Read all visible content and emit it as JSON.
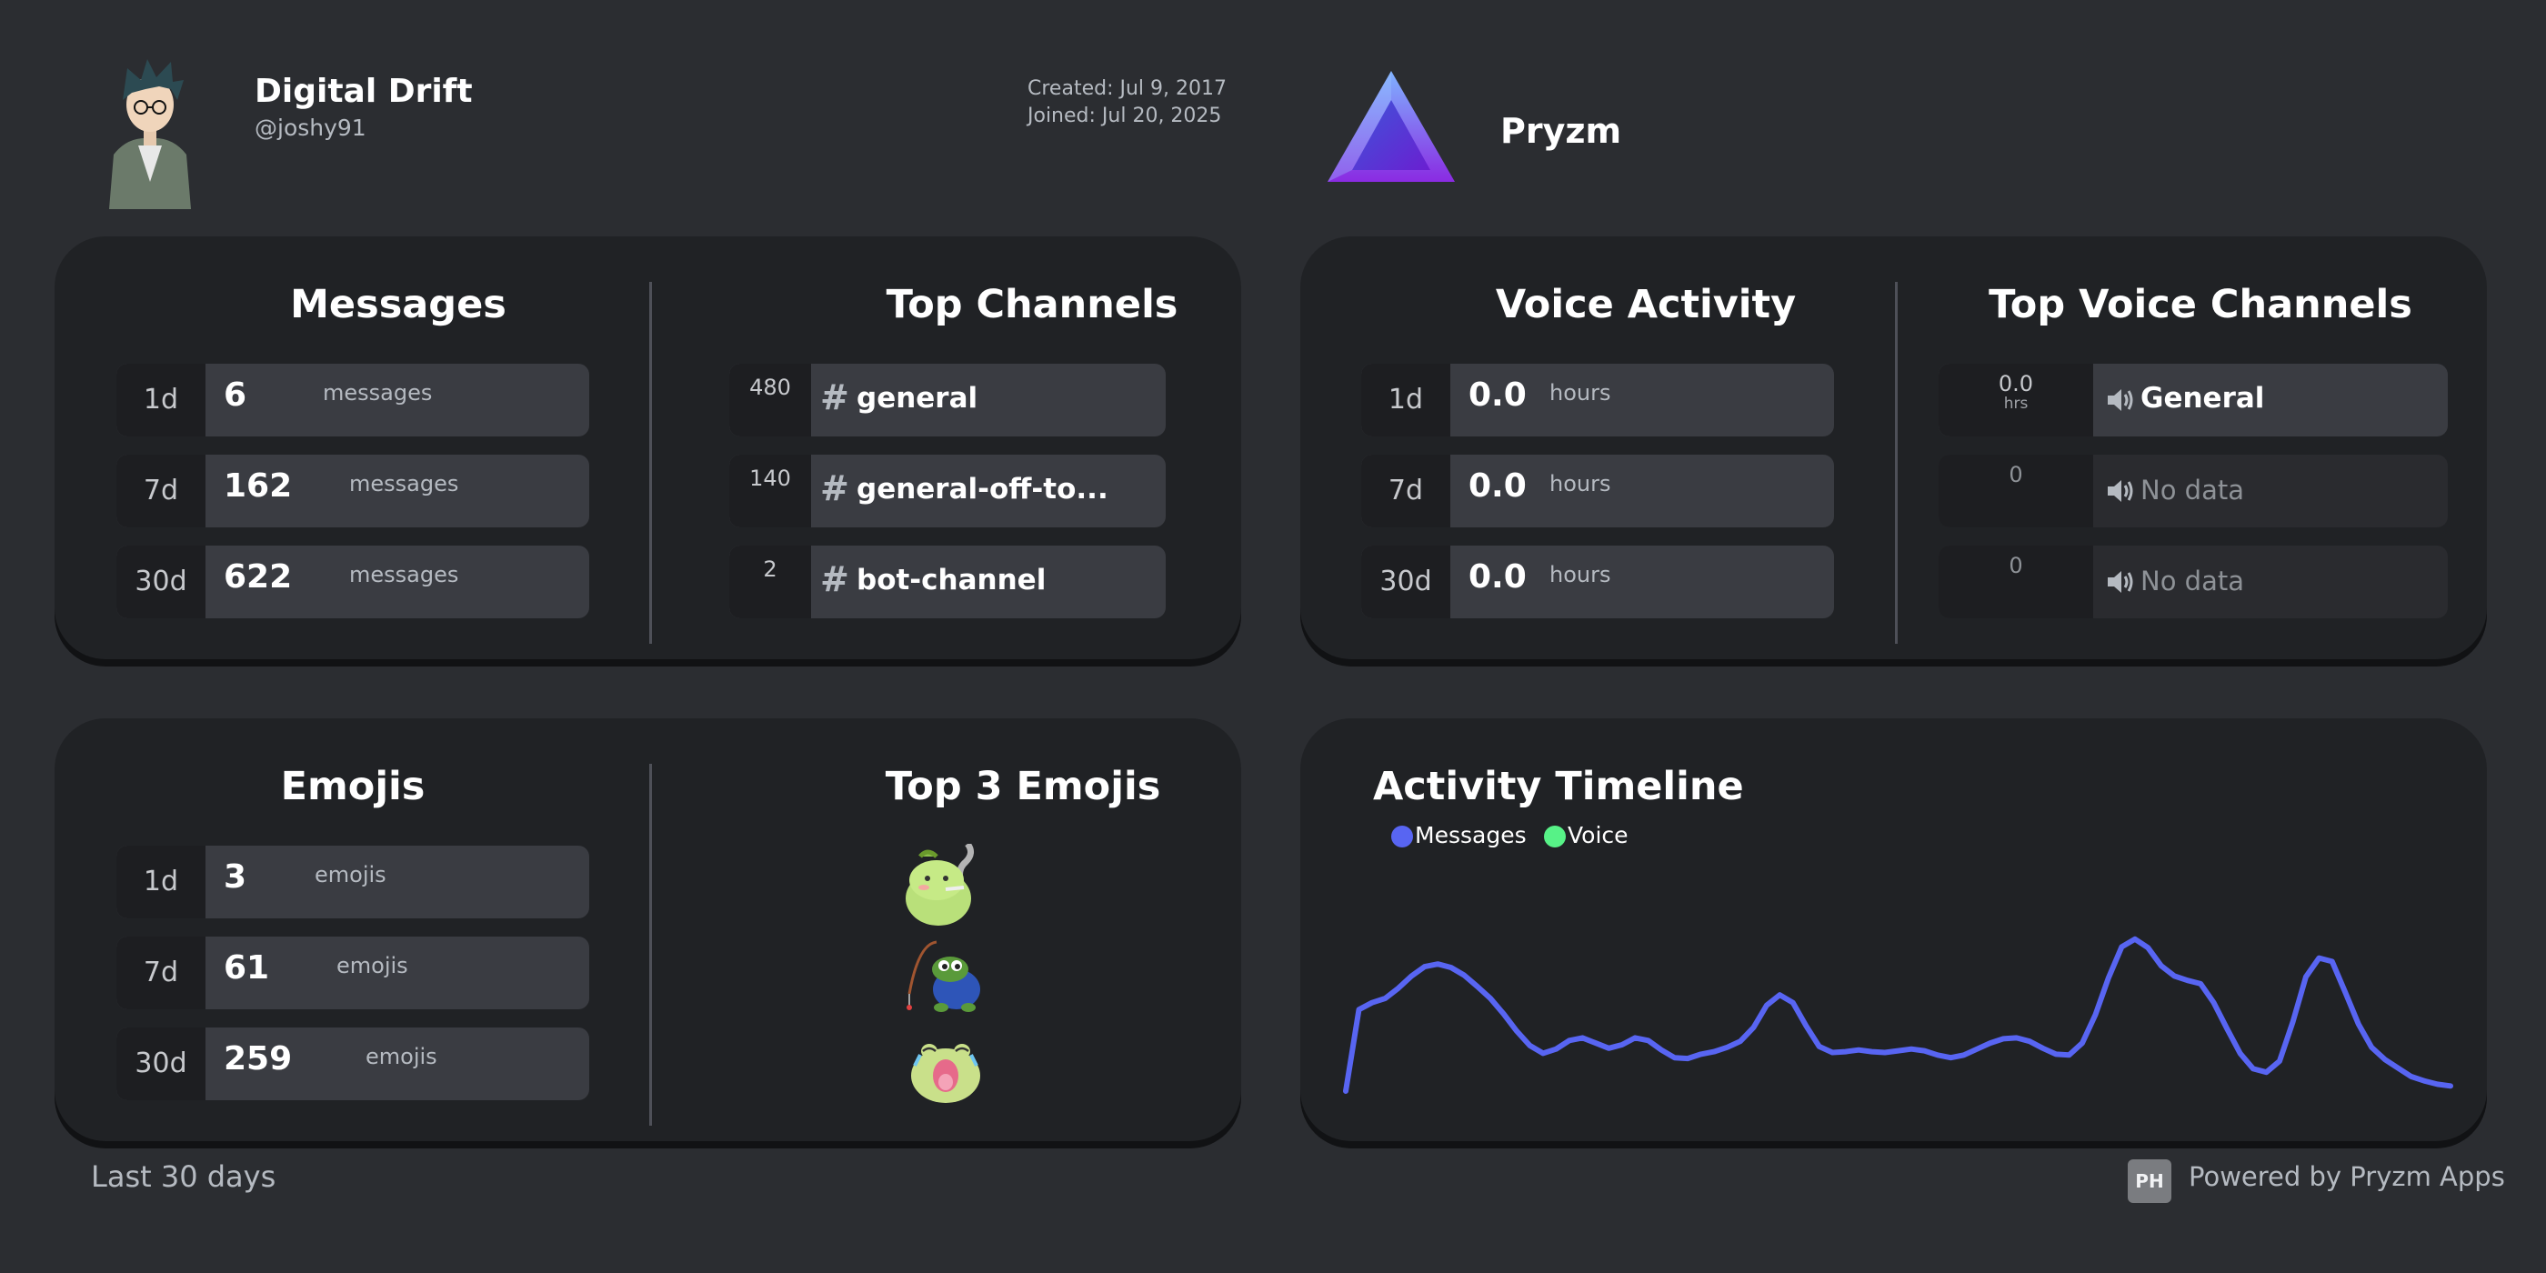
{
  "profile": {
    "display_name": "Digital Drift",
    "username": "@joshy91",
    "created": "Created: Jul 9, 2017",
    "joined": "Joined: Jul 20, 2025"
  },
  "server": {
    "name": "Pryzm"
  },
  "messages": {
    "title": "Messages",
    "rows": [
      {
        "period": "1d",
        "value": "6",
        "unit": "messages"
      },
      {
        "period": "7d",
        "value": "162",
        "unit": "messages"
      },
      {
        "period": "30d",
        "value": "622",
        "unit": "messages"
      }
    ]
  },
  "top_channels": {
    "title": "Top Channels",
    "rows": [
      {
        "count": "480",
        "name": "general"
      },
      {
        "count": "140",
        "name": "general-off-to..."
      },
      {
        "count": "2",
        "name": "bot-channel"
      }
    ]
  },
  "voice": {
    "title": "Voice Activity",
    "rows": [
      {
        "period": "1d",
        "value": "0.0",
        "unit": "hours"
      },
      {
        "period": "7d",
        "value": "0.0",
        "unit": "hours"
      },
      {
        "period": "30d",
        "value": "0.0",
        "unit": "hours"
      }
    ]
  },
  "top_voice": {
    "title": "Top Voice Channels",
    "rows": [
      {
        "count": "0.0",
        "sub": "hrs",
        "name": "General"
      },
      {
        "count": "0",
        "sub": "",
        "name": "No data"
      },
      {
        "count": "0",
        "sub": "",
        "name": "No data"
      }
    ]
  },
  "emojis": {
    "title": "Emojis",
    "rows": [
      {
        "period": "1d",
        "value": "3",
        "unit": "emojis"
      },
      {
        "period": "7d",
        "value": "61",
        "unit": "emojis"
      },
      {
        "period": "30d",
        "value": "259",
        "unit": "emojis"
      }
    ]
  },
  "top_emojis": {
    "title": "Top 3 Emojis",
    "icons": [
      "smoking-frog-emoji-icon",
      "fishing-pepe-emoji-icon",
      "crying-frog-emoji-icon"
    ]
  },
  "timeline": {
    "title": "Activity Timeline",
    "legend": [
      "Messages",
      "Voice"
    ],
    "colors": {
      "messages": "#5865f2",
      "voice": "#57f287"
    }
  },
  "chart_data": {
    "type": "line",
    "title": "Activity Timeline",
    "series": [
      {
        "name": "Messages",
        "values": [
          0,
          9.5,
          10.3,
          10.8,
          12,
          13.4,
          14.5,
          14.8,
          14.4,
          13.5,
          12.2,
          10.8,
          9,
          7,
          5.3,
          4.4,
          4.9,
          5.9,
          6.2,
          5.6,
          5,
          5.4,
          6.2,
          5.9,
          4.8,
          3.9,
          3.8,
          4.3,
          4.6,
          5.1,
          5.8,
          7.4,
          10,
          11.2,
          10.3,
          7.6,
          5.2,
          4.5,
          4.6,
          4.8,
          4.6,
          4.5,
          4.7,
          4.9,
          4.7,
          4.2,
          3.9,
          4.2,
          4.9,
          5.6,
          6.1,
          6.2,
          5.8,
          5,
          4.3,
          4.2,
          5.6,
          8.9,
          13.2,
          16.8,
          17.7,
          16.7,
          14.6,
          13.4,
          12.9,
          12.5,
          10.3,
          7.3,
          4.4,
          2.6,
          2.2,
          3.5,
          8,
          13.3,
          15.5,
          15.1,
          11.5,
          7.8,
          5.1,
          3.7,
          2.7,
          1.7,
          1.2,
          0.8,
          0.6
        ]
      },
      {
        "name": "Voice",
        "values": []
      }
    ]
  }
}
